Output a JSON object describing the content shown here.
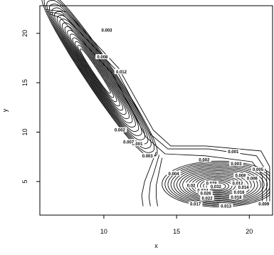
{
  "chart_data": {
    "type": "contour",
    "title": "",
    "xlabel": "x",
    "ylabel": "y",
    "xlim": [
      5.6,
      21.6
    ],
    "ylim": [
      1.6,
      22.8
    ],
    "x_ticks": [
      10,
      15,
      20
    ],
    "y_ticks": [
      5,
      10,
      15,
      20
    ],
    "x_tick_labels": [
      "10",
      "15",
      "20"
    ],
    "y_tick_labels": [
      "5",
      "10",
      "15",
      "20"
    ],
    "grid": false,
    "legend": "none",
    "line_color": "#000000",
    "components": [
      {
        "kind": "ridge",
        "center": [
          10.0,
          15.0
        ],
        "start": [
          6.4,
          22.1
        ],
        "end": [
          13.3,
          6.8
        ],
        "bend_to": [
          12.9,
          3.4
        ],
        "peak_level": 0.07
      },
      {
        "kind": "peak",
        "center": [
          17.8,
          4.5
        ],
        "peak_level": 0.032
      }
    ],
    "levels": [
      0.001,
      0.002,
      0.003,
      0.004,
      0.005,
      0.006,
      0.007,
      0.008,
      0.009,
      0.01,
      0.011,
      0.012,
      0.013,
      0.014,
      0.015,
      0.016,
      0.017,
      0.018,
      0.019,
      0.02,
      0.021,
      0.022,
      0.023,
      0.024,
      0.025,
      0.026,
      0.027,
      0.028,
      0.029,
      0.03,
      0.031
    ],
    "contour_labels": [
      {
        "text": "0.001",
        "x": 18.9,
        "y": 8.0
      },
      {
        "text": "0.002",
        "x": 16.9,
        "y": 7.2
      },
      {
        "text": "0.003",
        "x": 19.1,
        "y": 6.8
      },
      {
        "text": "0.005",
        "x": 20.6,
        "y": 6.2
      },
      {
        "text": "0.004",
        "x": 14.8,
        "y": 5.8
      },
      {
        "text": "0.008",
        "x": 19.4,
        "y": 5.6
      },
      {
        "text": "0.006",
        "x": 20.2,
        "y": 5.3
      },
      {
        "text": "0.012",
        "x": 19.2,
        "y": 4.8
      },
      {
        "text": "0.014",
        "x": 19.6,
        "y": 4.4
      },
      {
        "text": "0.016",
        "x": 19.3,
        "y": 3.9
      },
      {
        "text": "0.018",
        "x": 19.1,
        "y": 3.4
      },
      {
        "text": "0.02",
        "x": 16.0,
        "y": 4.6
      },
      {
        "text": "0.024",
        "x": 16.8,
        "y": 4.1
      },
      {
        "text": "0.028",
        "x": 17.4,
        "y": 4.8
      },
      {
        "text": "0.032",
        "x": 17.7,
        "y": 4.5
      },
      {
        "text": "0.026",
        "x": 17.0,
        "y": 3.8
      },
      {
        "text": "0.022",
        "x": 17.1,
        "y": 3.3
      },
      {
        "text": "0.017",
        "x": 16.3,
        "y": 2.7
      },
      {
        "text": "0.013",
        "x": 18.4,
        "y": 2.5
      },
      {
        "text": "0.009",
        "x": 21.0,
        "y": 2.7
      },
      {
        "text": "0.003",
        "x": 10.2,
        "y": 20.3
      },
      {
        "text": "0.008",
        "x": 9.9,
        "y": 17.6
      },
      {
        "text": "0.012",
        "x": 11.2,
        "y": 16.1
      },
      {
        "text": "0.002",
        "x": 11.1,
        "y": 10.2
      },
      {
        "text": "0.001",
        "x": 12.3,
        "y": 8.8
      },
      {
        "text": "0.003",
        "x": 13.0,
        "y": 7.6
      },
      {
        "text": "0.007",
        "x": 11.7,
        "y": 9.0
      }
    ]
  }
}
